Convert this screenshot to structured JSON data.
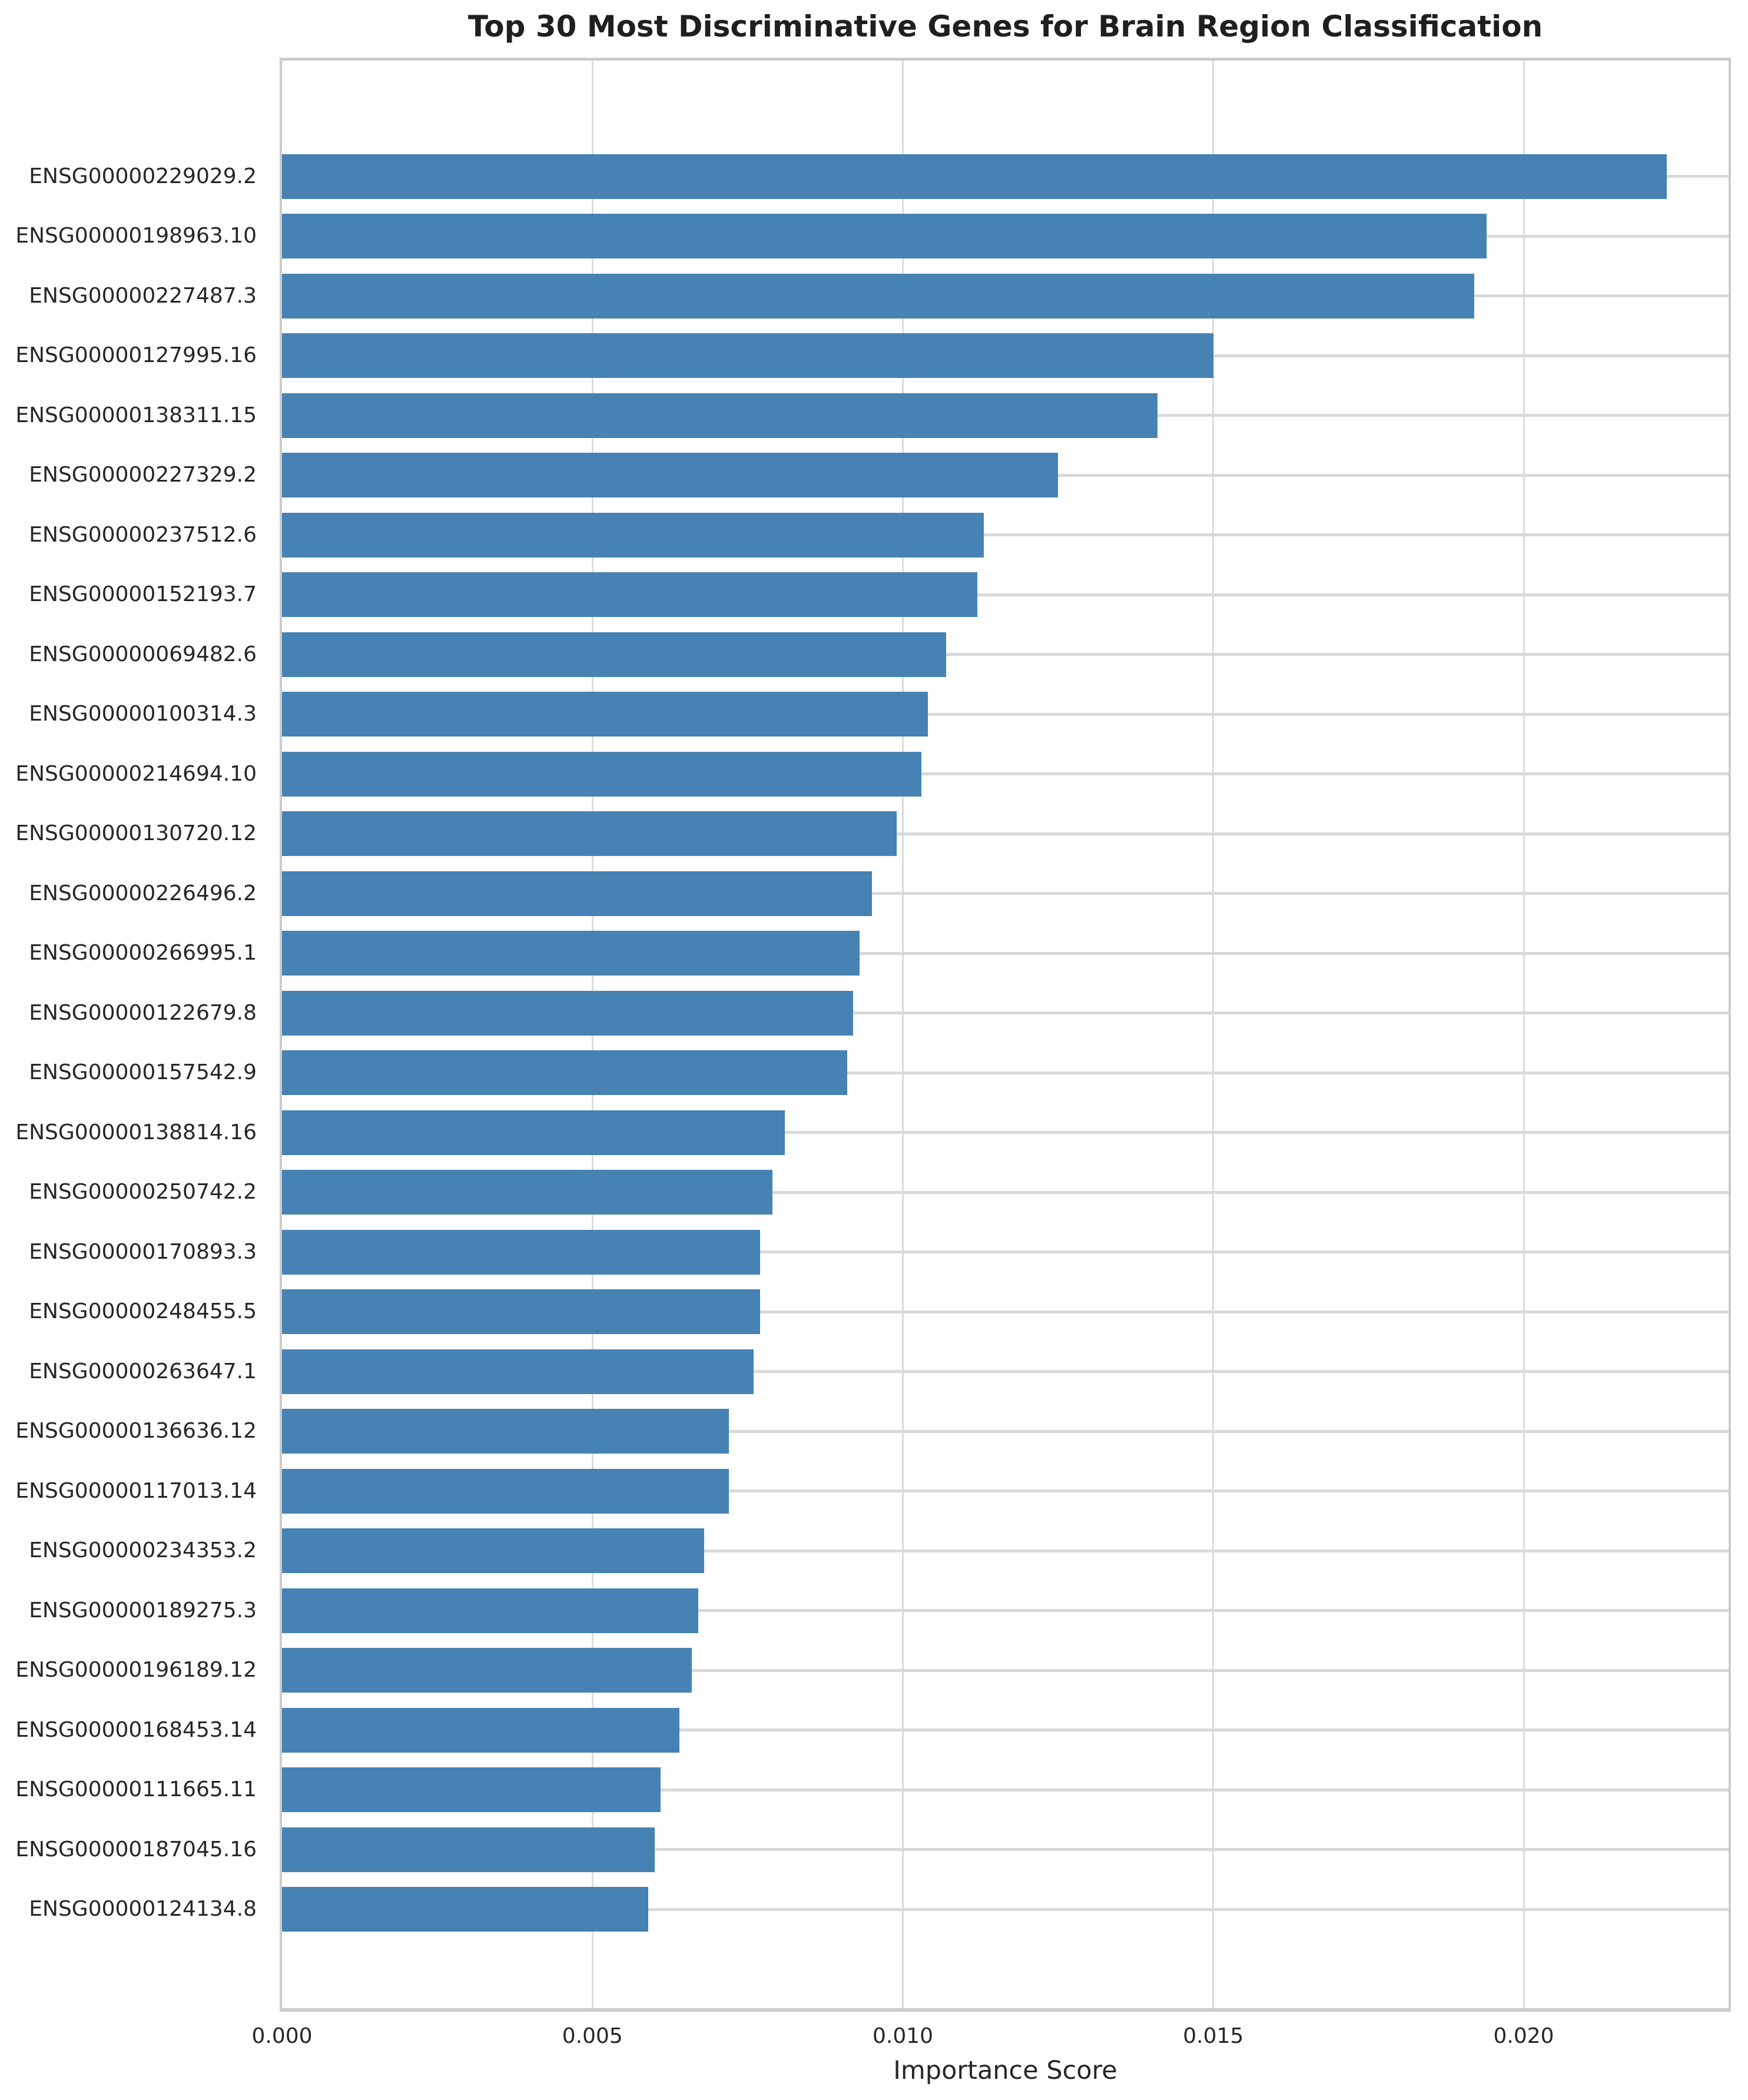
{
  "title": "Top 30 Most Discriminative Genes for Brain Region Classification",
  "xlabel": "Importance Score",
  "colors": {
    "bar": "#4682b4",
    "grid_vertical": "#dcdcdc",
    "grid_horizontal": "#d9d9d9",
    "spine": "#cccccc",
    "text": "#262626",
    "background": "#ffffff"
  },
  "x_ticks": [
    {
      "label": "0.000",
      "value": 0.0
    },
    {
      "label": "0.005",
      "value": 0.005
    },
    {
      "label": "0.010",
      "value": 0.01
    },
    {
      "label": "0.015",
      "value": 0.015
    },
    {
      "label": "0.020",
      "value": 0.02
    }
  ],
  "chart_data": {
    "type": "bar",
    "orientation": "horizontal",
    "title": "Top 30 Most Discriminative Genes for Brain Region Classification",
    "xlabel": "Importance Score",
    "ylabel": "",
    "xlim": [
      0,
      0.0233
    ],
    "grid": true,
    "legend": null,
    "bar_color": "#4682b4",
    "categories": [
      "ENSG00000229029.2",
      "ENSG00000198963.10",
      "ENSG00000227487.3",
      "ENSG00000127995.16",
      "ENSG00000138311.15",
      "ENSG00000227329.2",
      "ENSG00000237512.6",
      "ENSG00000152193.7",
      "ENSG00000069482.6",
      "ENSG00000100314.3",
      "ENSG00000214694.10",
      "ENSG00000130720.12",
      "ENSG00000226496.2",
      "ENSG00000266995.1",
      "ENSG00000122679.8",
      "ENSG00000157542.9",
      "ENSG00000138814.16",
      "ENSG00000250742.2",
      "ENSG00000170893.3",
      "ENSG00000248455.5",
      "ENSG00000263647.1",
      "ENSG00000136636.12",
      "ENSG00000117013.14",
      "ENSG00000234353.2",
      "ENSG00000189275.3",
      "ENSG00000196189.12",
      "ENSG00000168453.14",
      "ENSG00000111665.11",
      "ENSG00000187045.16",
      "ENSG00000124134.8"
    ],
    "values": [
      0.0223,
      0.0194,
      0.0192,
      0.015,
      0.0141,
      0.0125,
      0.0113,
      0.0112,
      0.0107,
      0.0104,
      0.0103,
      0.0099,
      0.0095,
      0.0093,
      0.0092,
      0.0091,
      0.0081,
      0.0079,
      0.0077,
      0.0077,
      0.0076,
      0.0072,
      0.0072,
      0.0068,
      0.0067,
      0.0066,
      0.0064,
      0.0061,
      0.006,
      0.0059
    ]
  }
}
